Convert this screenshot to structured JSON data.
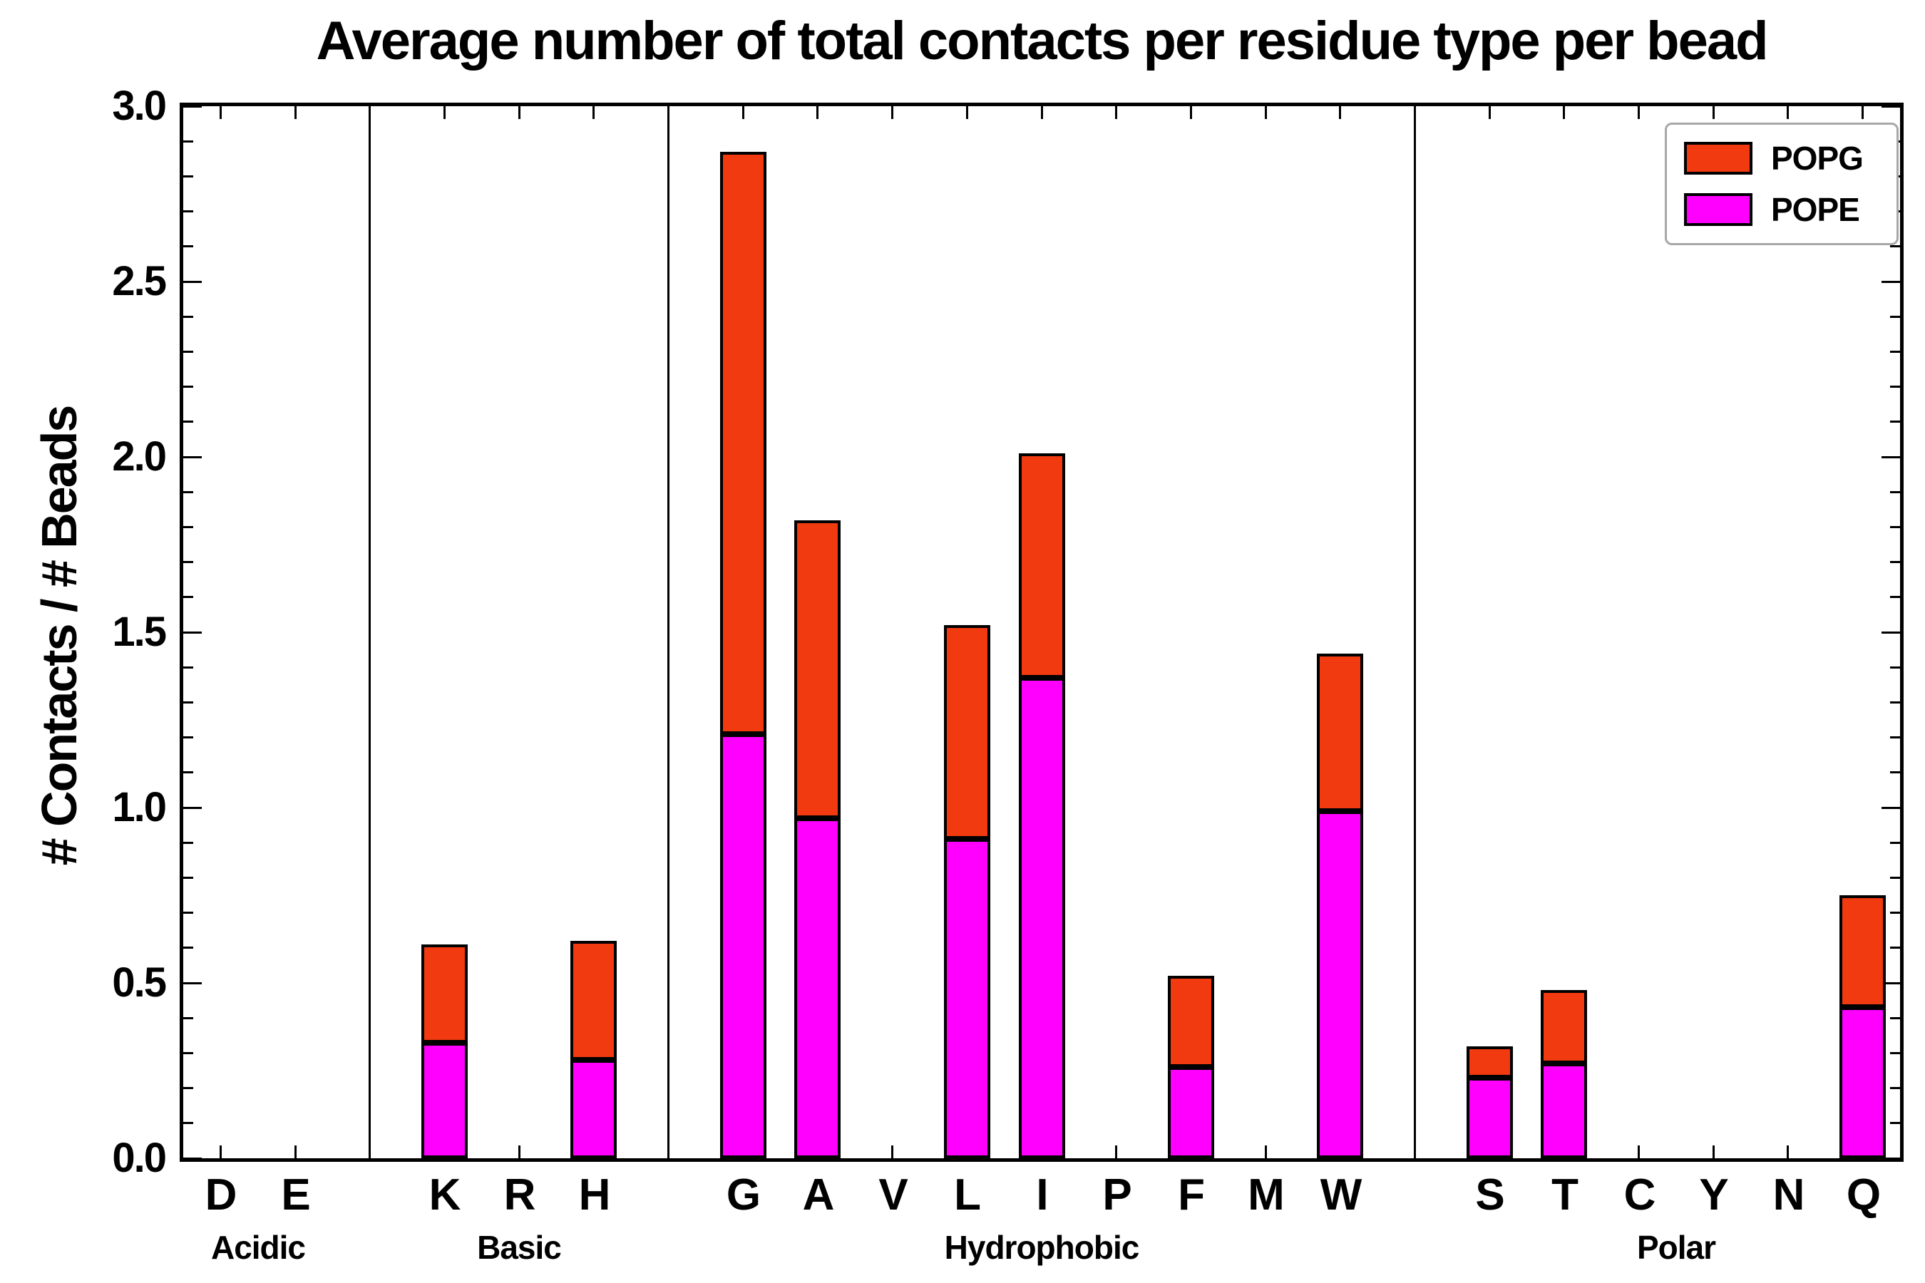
{
  "chart_data": {
    "type": "bar",
    "stacked": true,
    "title": "Average number of total contacts per residue type per bead",
    "ylabel": "# Contacts / # Beads",
    "xlabel": "",
    "ylim": [
      0,
      3.0
    ],
    "y_major_step": 0.5,
    "y_minor_step": 0.1,
    "y_tick_labels": [
      "0.0",
      "0.5",
      "1.0",
      "1.5",
      "2.0",
      "2.5",
      "3.0"
    ],
    "categories": [
      "D",
      "E",
      "K",
      "R",
      "H",
      "G",
      "A",
      "V",
      "L",
      "I",
      "P",
      "F",
      "M",
      "W",
      "S",
      "T",
      "C",
      "Y",
      "N",
      "Q"
    ],
    "groups": [
      {
        "label": "Acidic",
        "count": 2
      },
      {
        "label": "Basic",
        "count": 3
      },
      {
        "label": "Hydrophobic",
        "count": 9
      },
      {
        "label": "Polar",
        "count": 6
      }
    ],
    "series": [
      {
        "name": "POPE",
        "color": "#ff00ff",
        "values": [
          0,
          0,
          0.33,
          0,
          0.28,
          1.21,
          0.97,
          0,
          0.91,
          1.37,
          0,
          0.26,
          0,
          0.99,
          0.23,
          0.27,
          0,
          0,
          0,
          0.43
        ]
      },
      {
        "name": "POPG",
        "color": "#f23a10",
        "values": [
          0,
          0,
          0.28,
          0,
          0.34,
          1.66,
          0.85,
          0,
          0.61,
          0.64,
          0,
          0.26,
          0,
          0.45,
          0.09,
          0.21,
          0,
          0,
          0,
          0.32
        ]
      }
    ],
    "legend": [
      {
        "label": "POPG",
        "color": "#f23a10"
      },
      {
        "label": "POPE",
        "color": "#ff00ff"
      }
    ],
    "legend_position": "upper right",
    "grid": false
  }
}
